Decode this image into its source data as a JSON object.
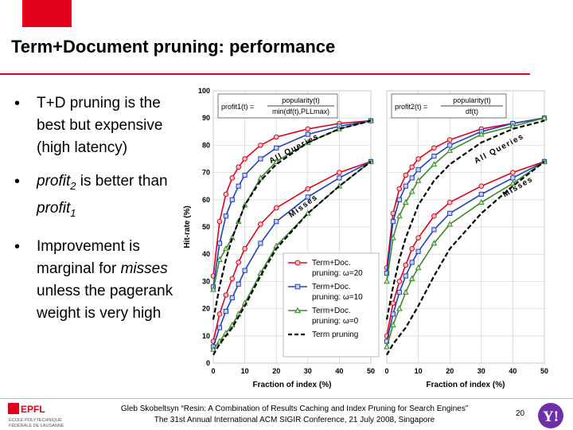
{
  "slide": {
    "title": "Term+Document pruning: performance",
    "page_number": "20"
  },
  "bullets": [
    {
      "parts": [
        {
          "text": "T+D pruning is the best but expensive (high latency)",
          "style": "normal"
        }
      ]
    },
    {
      "parts": [
        {
          "text": "profit",
          "style": "italic"
        },
        {
          "text": "2",
          "style": "italic-sub"
        },
        {
          "text": " is better than ",
          "style": "normal"
        },
        {
          "text": "profit",
          "style": "italic"
        },
        {
          "text": "1",
          "style": "italic-sub"
        }
      ]
    },
    {
      "parts": [
        {
          "text": "Improvement is marginal for ",
          "style": "normal"
        },
        {
          "text": "misses",
          "style": "italic"
        },
        {
          "text": " unless the pagerank weight is very high",
          "style": "normal"
        }
      ]
    }
  ],
  "footer": {
    "line1": "Gleb Skobeltsyn “Resin: A Combination of Results Caching and Index Pruning for Search Engines”",
    "line2": "The 31st Annual International ACM SIGIR Conference, 21 July 2008, Singapore"
  },
  "logos": {
    "epfl_text": "EPFL",
    "epfl_sub1": "ÉCOLE POLYTECHNIQUE",
    "epfl_sub2": "FÉDÉRALE DE LAUSANNE",
    "yahoo_text": "Y!"
  },
  "colors": {
    "accent": "#e2001a",
    "red_series": "#e2001a",
    "blue_series": "#1f3fbf",
    "green_series": "#3a8a2a",
    "black_series": "#000000"
  },
  "chart_data": [
    {
      "type": "line",
      "panel": "left",
      "formula": {
        "lhs": "profit1(t) =",
        "num": "popularity(t)",
        "den": "min(df(t),PLLmax)"
      },
      "xlabel": "Fraction of index (%)",
      "ylabel": "Hit-rate (%)",
      "xlim": [
        0,
        50
      ],
      "ylim": [
        0,
        100
      ],
      "xticks": [
        0,
        10,
        20,
        30,
        40,
        50
      ],
      "yticks": [
        0,
        10,
        20,
        30,
        40,
        50,
        60,
        70,
        80,
        90,
        100
      ],
      "annotations": [
        {
          "text": "All Queries",
          "x": 26,
          "y": 78,
          "angle": -28
        },
        {
          "text": "Misses",
          "x": 29,
          "y": 57,
          "angle": -36
        }
      ],
      "legend": {
        "placement": "bottom-right",
        "entries": [
          {
            "label1": "Term+Doc.",
            "label2": "pruning: ω=20",
            "color": "#e2001a",
            "marker": "circle"
          },
          {
            "label1": "Term+Doc.",
            "label2": "pruning: ω=10",
            "color": "#1f3fbf",
            "marker": "square"
          },
          {
            "label1": "Term+Doc.",
            "label2": "pruning: ω=0",
            "color": "#3a8a2a",
            "marker": "triangle"
          },
          {
            "label1": "Term pruning",
            "label2": "",
            "color": "#000000",
            "marker": "dash"
          }
        ]
      },
      "series": [
        {
          "color": "#e2001a",
          "marker": "circle",
          "dash": false,
          "x": [
            0,
            2,
            4,
            6,
            8,
            10,
            15,
            20,
            30,
            40,
            50
          ],
          "y": [
            32,
            52,
            62,
            68,
            72,
            75,
            80,
            83,
            86,
            88,
            89
          ]
        },
        {
          "color": "#1f3fbf",
          "marker": "square",
          "dash": false,
          "x": [
            0,
            2,
            4,
            6,
            8,
            10,
            15,
            20,
            30,
            40,
            50
          ],
          "y": [
            28,
            44,
            54,
            60,
            65,
            69,
            75,
            79,
            84,
            87,
            89
          ]
        },
        {
          "color": "#3a8a2a",
          "marker": "triangle",
          "dash": false,
          "x": [
            0,
            2,
            4,
            6,
            8,
            10,
            15,
            20,
            30,
            40,
            50
          ],
          "y": [
            27,
            38,
            42,
            46,
            52,
            58,
            68,
            74,
            81,
            86,
            89
          ]
        },
        {
          "color": "#000000",
          "marker": "none",
          "dash": true,
          "x": [
            0,
            2,
            4,
            6,
            8,
            10,
            15,
            20,
            30,
            40,
            50
          ],
          "y": [
            16,
            28,
            38,
            46,
            52,
            58,
            67,
            73,
            81,
            86,
            89
          ]
        },
        {
          "color": "#e2001a",
          "marker": "circle",
          "dash": false,
          "x": [
            0,
            2,
            4,
            6,
            8,
            10,
            15,
            20,
            30,
            40,
            50
          ],
          "y": [
            8,
            18,
            25,
            31,
            37,
            42,
            51,
            57,
            64,
            70,
            74
          ]
        },
        {
          "color": "#1f3fbf",
          "marker": "square",
          "dash": false,
          "x": [
            0,
            2,
            4,
            6,
            8,
            10,
            15,
            20,
            30,
            40,
            50
          ],
          "y": [
            6,
            13,
            19,
            24,
            29,
            34,
            44,
            52,
            61,
            68,
            74
          ]
        },
        {
          "color": "#3a8a2a",
          "marker": "triangle",
          "dash": false,
          "x": [
            0,
            2,
            4,
            6,
            8,
            10,
            15,
            20,
            30,
            40,
            50
          ],
          "y": [
            5,
            8,
            11,
            14,
            18,
            22,
            33,
            43,
            55,
            65,
            74
          ]
        },
        {
          "color": "#000000",
          "marker": "none",
          "dash": true,
          "x": [
            0,
            2,
            4,
            6,
            8,
            10,
            15,
            20,
            30,
            40,
            50
          ],
          "y": [
            3,
            7,
            10,
            13,
            17,
            21,
            32,
            42,
            55,
            65,
            74
          ]
        }
      ]
    },
    {
      "type": "line",
      "panel": "right",
      "formula": {
        "lhs": "profit2(t) =",
        "num": "popularity(t)",
        "den": "df(t)"
      },
      "xlabel": "Fraction of index (%)",
      "ylabel": "",
      "xlim": [
        0,
        50
      ],
      "ylim": [
        0,
        100
      ],
      "xticks": [
        0,
        10,
        20,
        30,
        40,
        50
      ],
      "yticks": [],
      "annotations": [
        {
          "text": "All Queries",
          "x": 36,
          "y": 78,
          "angle": -28
        },
        {
          "text": "Misses",
          "x": 42,
          "y": 64,
          "angle": -30
        }
      ],
      "series": [
        {
          "color": "#e2001a",
          "marker": "circle",
          "dash": false,
          "x": [
            0,
            2,
            4,
            6,
            8,
            10,
            15,
            20,
            30,
            40,
            50
          ],
          "y": [
            35,
            55,
            64,
            69,
            72,
            75,
            79,
            82,
            86,
            88,
            90
          ]
        },
        {
          "color": "#1f3fbf",
          "marker": "square",
          "dash": false,
          "x": [
            0,
            2,
            4,
            6,
            8,
            10,
            15,
            20,
            30,
            40,
            50
          ],
          "y": [
            33,
            52,
            60,
            65,
            68,
            71,
            76,
            80,
            85,
            88,
            90
          ]
        },
        {
          "color": "#3a8a2a",
          "marker": "triangle",
          "dash": false,
          "x": [
            0,
            2,
            4,
            6,
            8,
            10,
            15,
            20,
            30,
            40,
            50
          ],
          "y": [
            30,
            46,
            54,
            59,
            63,
            67,
            73,
            78,
            84,
            87,
            90
          ]
        },
        {
          "color": "#000000",
          "marker": "none",
          "dash": true,
          "x": [
            0,
            2,
            4,
            6,
            8,
            10,
            15,
            20,
            30,
            40,
            50
          ],
          "y": [
            16,
            28,
            38,
            46,
            52,
            58,
            67,
            73,
            81,
            86,
            89
          ]
        },
        {
          "color": "#e2001a",
          "marker": "circle",
          "dash": false,
          "x": [
            0,
            2,
            4,
            6,
            8,
            10,
            15,
            20,
            30,
            40,
            50
          ],
          "y": [
            10,
            22,
            30,
            36,
            42,
            46,
            54,
            59,
            65,
            70,
            74
          ]
        },
        {
          "color": "#1f3fbf",
          "marker": "square",
          "dash": false,
          "x": [
            0,
            2,
            4,
            6,
            8,
            10,
            15,
            20,
            30,
            40,
            50
          ],
          "y": [
            8,
            18,
            26,
            32,
            37,
            41,
            49,
            55,
            62,
            68,
            74
          ]
        },
        {
          "color": "#3a8a2a",
          "marker": "triangle",
          "dash": false,
          "x": [
            0,
            2,
            4,
            6,
            8,
            10,
            15,
            20,
            30,
            40,
            50
          ],
          "y": [
            6,
            14,
            20,
            26,
            31,
            35,
            44,
            51,
            59,
            66,
            74
          ]
        },
        {
          "color": "#000000",
          "marker": "none",
          "dash": true,
          "x": [
            0,
            2,
            4,
            6,
            8,
            10,
            15,
            20,
            30,
            40,
            50
          ],
          "y": [
            3,
            7,
            10,
            13,
            17,
            21,
            32,
            42,
            55,
            65,
            74
          ]
        }
      ]
    }
  ]
}
